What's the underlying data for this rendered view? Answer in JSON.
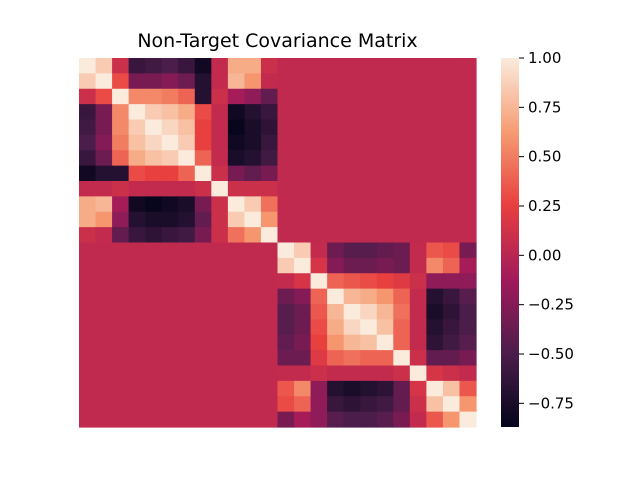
{
  "chart_data": {
    "type": "heatmap",
    "title": "Non-Target Covariance Matrix",
    "xlabel": "",
    "ylabel": "",
    "n": 24,
    "vmin": -0.87,
    "vmax": 1.0,
    "colorbar": {
      "ticks": [
        1.0,
        0.75,
        0.5,
        0.25,
        0.0,
        -0.25,
        -0.5,
        -0.75
      ],
      "tick_labels": [
        "1.00",
        "0.75",
        "0.50",
        "0.25",
        "0.00",
        "−0.25",
        "−0.50",
        "−0.75"
      ]
    },
    "colormap": [
      "#03051a",
      "#4c1d4b",
      "#a11a5b",
      "#e83f3f",
      "#f69c73",
      "#faebdd"
    ],
    "grid": false,
    "blocks": [
      {
        "indices": [
          0,
          1,
          2,
          3,
          4,
          5,
          6,
          7,
          8,
          9,
          10,
          11
        ],
        "matrix": [
          [
            1.0,
            0.85,
            0.1,
            -0.6,
            -0.55,
            -0.5,
            -0.6,
            -0.8,
            0.05,
            0.7,
            0.7,
            0.1
          ],
          [
            0.85,
            1.0,
            0.3,
            -0.3,
            -0.3,
            -0.25,
            -0.35,
            -0.7,
            0.05,
            0.75,
            0.6,
            0.05
          ],
          [
            0.1,
            0.3,
            1.0,
            0.55,
            0.55,
            0.5,
            0.4,
            -0.7,
            0.1,
            -0.1,
            -0.2,
            -0.4
          ],
          [
            -0.6,
            -0.3,
            0.55,
            1.0,
            0.85,
            0.8,
            0.7,
            0.3,
            0.05,
            -0.8,
            -0.7,
            -0.6
          ],
          [
            -0.55,
            -0.3,
            0.55,
            0.85,
            1.0,
            0.9,
            0.8,
            0.25,
            0.05,
            -0.85,
            -0.75,
            -0.65
          ],
          [
            -0.5,
            -0.25,
            0.5,
            0.8,
            0.9,
            1.0,
            0.85,
            0.25,
            0.05,
            -0.8,
            -0.75,
            -0.6
          ],
          [
            -0.6,
            -0.35,
            0.4,
            0.7,
            0.8,
            0.85,
            1.0,
            0.4,
            0.05,
            -0.75,
            -0.7,
            -0.55
          ],
          [
            -0.8,
            -0.7,
            -0.7,
            0.3,
            0.25,
            0.25,
            0.4,
            1.0,
            0.1,
            -0.3,
            -0.4,
            -0.3
          ],
          [
            0.05,
            0.05,
            0.1,
            0.05,
            0.05,
            0.05,
            0.05,
            0.1,
            1.0,
            0.1,
            0.1,
            0.1
          ],
          [
            0.7,
            0.75,
            -0.1,
            -0.8,
            -0.85,
            -0.8,
            -0.75,
            -0.3,
            0.1,
            1.0,
            0.85,
            0.45
          ],
          [
            0.7,
            0.6,
            -0.2,
            -0.7,
            -0.75,
            -0.75,
            -0.7,
            -0.4,
            0.1,
            0.85,
            1.0,
            0.6
          ],
          [
            0.1,
            0.05,
            -0.4,
            -0.6,
            -0.65,
            -0.6,
            -0.55,
            -0.3,
            0.1,
            0.45,
            0.6,
            1.0
          ]
        ]
      },
      {
        "indices": [
          12,
          13,
          14,
          15,
          16,
          17,
          18,
          19,
          20,
          21,
          22,
          23
        ],
        "matrix": [
          [
            1.0,
            0.85,
            0.05,
            -0.35,
            -0.45,
            -0.45,
            -0.4,
            -0.35,
            0.05,
            0.35,
            0.3,
            -0.3
          ],
          [
            0.85,
            1.0,
            0.15,
            -0.25,
            -0.35,
            -0.35,
            -0.3,
            -0.35,
            0.05,
            0.55,
            0.4,
            -0.1
          ],
          [
            0.05,
            0.15,
            1.0,
            0.4,
            0.35,
            0.3,
            0.25,
            0.2,
            0.1,
            -0.2,
            -0.2,
            -0.2
          ],
          [
            -0.35,
            -0.25,
            0.4,
            1.0,
            0.75,
            0.7,
            0.6,
            0.4,
            0.05,
            -0.7,
            -0.6,
            -0.45
          ],
          [
            -0.45,
            -0.35,
            0.35,
            0.75,
            1.0,
            0.9,
            0.75,
            0.45,
            0.05,
            -0.75,
            -0.65,
            -0.5
          ],
          [
            -0.45,
            -0.35,
            0.3,
            0.7,
            0.9,
            1.0,
            0.8,
            0.4,
            0.05,
            -0.7,
            -0.6,
            -0.5
          ],
          [
            -0.4,
            -0.3,
            0.25,
            0.6,
            0.75,
            0.8,
            1.0,
            0.4,
            0.05,
            -0.65,
            -0.55,
            -0.45
          ],
          [
            -0.35,
            -0.35,
            0.2,
            0.4,
            0.45,
            0.4,
            0.4,
            1.0,
            0.1,
            -0.4,
            -0.4,
            -0.3
          ],
          [
            0.05,
            0.05,
            0.1,
            0.05,
            0.05,
            0.05,
            0.05,
            0.1,
            1.0,
            0.15,
            0.1,
            0.05
          ],
          [
            0.35,
            0.55,
            -0.2,
            -0.7,
            -0.75,
            -0.7,
            -0.65,
            -0.4,
            0.15,
            1.0,
            0.8,
            0.35
          ],
          [
            0.3,
            0.4,
            -0.2,
            -0.6,
            -0.65,
            -0.6,
            -0.55,
            -0.4,
            0.1,
            0.8,
            1.0,
            0.6
          ],
          [
            -0.3,
            -0.1,
            -0.2,
            -0.45,
            -0.5,
            -0.5,
            -0.45,
            -0.3,
            0.05,
            0.35,
            0.6,
            1.0
          ]
        ]
      }
    ],
    "off_block_value": 0.04
  }
}
